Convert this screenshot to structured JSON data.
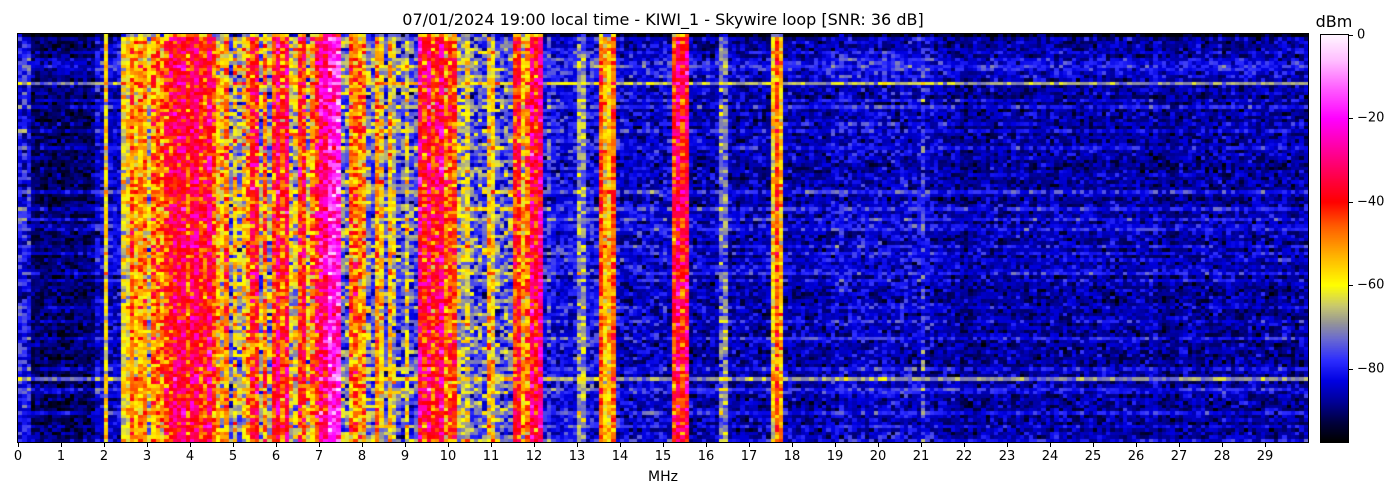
{
  "title": "07/01/2024 19:00 local time - KIWI_1 - Skywire loop [SNR: 36 dB]",
  "station": "KIWI_1",
  "antenna": "Skywire loop",
  "snr_label": "SNR: 36 dB",
  "timestamp_label": "07/01/2024 19:00 local time",
  "colors": {
    "background": "#ffffff",
    "frame": "#000000",
    "text": "#000000"
  },
  "chart_data": {
    "type": "heatmap",
    "title": "07/01/2024 19:00 local time - KIWI_1 - Skywire loop [SNR: 36 dB]",
    "xlabel": "MHz",
    "value_label": "dBm",
    "x_range": [
      0,
      30
    ],
    "value_range": [
      -97.5,
      0
    ],
    "grid": false,
    "x_ticks": [
      {
        "v": 0,
        "label": "0"
      },
      {
        "v": 1,
        "label": "1"
      },
      {
        "v": 2,
        "label": "2"
      },
      {
        "v": 3,
        "label": "3"
      },
      {
        "v": 4,
        "label": "4"
      },
      {
        "v": 5,
        "label": "5"
      },
      {
        "v": 6,
        "label": "6"
      },
      {
        "v": 7,
        "label": "7"
      },
      {
        "v": 8,
        "label": "8"
      },
      {
        "v": 9,
        "label": "9"
      },
      {
        "v": 10,
        "label": "10"
      },
      {
        "v": 11,
        "label": "11"
      },
      {
        "v": 12,
        "label": "12"
      },
      {
        "v": 13,
        "label": "13"
      },
      {
        "v": 14,
        "label": "14"
      },
      {
        "v": 15,
        "label": "15"
      },
      {
        "v": 16,
        "label": "16"
      },
      {
        "v": 17,
        "label": "17"
      },
      {
        "v": 18,
        "label": "18"
      },
      {
        "v": 19,
        "label": "19"
      },
      {
        "v": 20,
        "label": "20"
      },
      {
        "v": 21,
        "label": "21"
      },
      {
        "v": 22,
        "label": "22"
      },
      {
        "v": 23,
        "label": "23"
      },
      {
        "v": 24,
        "label": "24"
      },
      {
        "v": 25,
        "label": "25"
      },
      {
        "v": 26,
        "label": "26"
      },
      {
        "v": 27,
        "label": "27"
      },
      {
        "v": 28,
        "label": "28"
      },
      {
        "v": 29,
        "label": "29"
      }
    ],
    "colorbar_ticks": [
      {
        "v": 0,
        "label": "0"
      },
      {
        "v": -20,
        "label": "−20"
      },
      {
        "v": -40,
        "label": "−40"
      },
      {
        "v": -60,
        "label": "−60"
      },
      {
        "v": -80,
        "label": "−80"
      }
    ],
    "grid_bins": 300,
    "grid_rows": 120,
    "seed": 7,
    "top_row_darken": -18,
    "colormap": [
      [
        0,
        [
          255,
          245,
          255
        ]
      ],
      [
        -6,
        [
          255,
          190,
          255
        ]
      ],
      [
        -13,
        [
          255,
          90,
          255
        ]
      ],
      [
        -20,
        [
          255,
          0,
          255
        ]
      ],
      [
        -28,
        [
          255,
          0,
          150
        ]
      ],
      [
        -35,
        [
          255,
          0,
          60
        ]
      ],
      [
        -40,
        [
          255,
          0,
          0
        ]
      ],
      [
        -46,
        [
          255,
          95,
          0
        ]
      ],
      [
        -53,
        [
          255,
          180,
          0
        ]
      ],
      [
        -60,
        [
          255,
          255,
          0
        ]
      ],
      [
        -65,
        [
          200,
          200,
          110
        ]
      ],
      [
        -69,
        [
          150,
          150,
          150
        ]
      ],
      [
        -73,
        [
          105,
          105,
          210
        ]
      ],
      [
        -78,
        [
          45,
          45,
          255
        ]
      ],
      [
        -83,
        [
          0,
          0,
          225
        ]
      ],
      [
        -88,
        [
          0,
          0,
          150
        ]
      ],
      [
        -93,
        [
          0,
          0,
          60
        ]
      ],
      [
        -97.5,
        [
          0,
          0,
          0
        ]
      ]
    ],
    "noise_bands": [
      [
        0.0,
        0.35,
        -83,
        5
      ],
      [
        0.35,
        1.8,
        -92,
        3.5
      ],
      [
        1.8,
        2.5,
        -86,
        4
      ],
      [
        2.5,
        3.0,
        -75,
        7
      ],
      [
        3.0,
        3.5,
        -65,
        8
      ],
      [
        3.5,
        4.45,
        -61,
        7
      ],
      [
        4.45,
        5.0,
        -74,
        8
      ],
      [
        5.0,
        5.9,
        -69,
        9
      ],
      [
        5.9,
        6.35,
        -56,
        8
      ],
      [
        6.35,
        7.0,
        -64,
        9
      ],
      [
        7.0,
        7.55,
        -48,
        8
      ],
      [
        7.55,
        8.2,
        -73,
        8
      ],
      [
        8.2,
        9.3,
        -77,
        7
      ],
      [
        9.3,
        10.15,
        -59,
        8
      ],
      [
        10.15,
        10.5,
        -69,
        7
      ],
      [
        10.5,
        11.6,
        -76,
        7
      ],
      [
        11.6,
        11.95,
        -74,
        8
      ],
      [
        11.95,
        12.12,
        -52,
        8
      ],
      [
        12.12,
        13.55,
        -84,
        4.5
      ],
      [
        13.55,
        13.9,
        -80,
        6
      ],
      [
        13.9,
        15.2,
        -86,
        4.5
      ],
      [
        15.2,
        15.6,
        -72,
        8
      ],
      [
        15.6,
        17.55,
        -88,
        4
      ],
      [
        17.55,
        17.8,
        -82,
        5
      ],
      [
        17.8,
        18.9,
        -88,
        4
      ],
      [
        18.9,
        21.3,
        -86,
        4.5
      ],
      [
        21.3,
        21.9,
        -88,
        4
      ],
      [
        21.9,
        22.3,
        -90,
        3.5
      ],
      [
        22.3,
        26.5,
        -88.5,
        4
      ],
      [
        26.5,
        27.0,
        -90,
        3.5
      ],
      [
        27.0,
        30.01,
        -88.5,
        4
      ]
    ],
    "signal_lines": [
      [
        2.05,
        0.08,
        -60
      ],
      [
        2.45,
        0.08,
        -63
      ],
      [
        2.55,
        0.07,
        -60
      ],
      [
        2.72,
        0.08,
        -57
      ],
      [
        2.9,
        0.07,
        -61
      ],
      [
        2.97,
        0.06,
        -55
      ],
      [
        3.2,
        0.1,
        -48
      ],
      [
        3.38,
        0.08,
        -52
      ],
      [
        3.6,
        0.08,
        -50
      ],
      [
        3.7,
        0.09,
        -46
      ],
      [
        3.82,
        0.07,
        -50
      ],
      [
        3.95,
        0.09,
        -44
      ],
      [
        4.1,
        0.07,
        -52
      ],
      [
        4.3,
        0.14,
        -42
      ],
      [
        4.62,
        0.07,
        -55
      ],
      [
        4.77,
        0.08,
        -59
      ],
      [
        5.05,
        0.08,
        -60
      ],
      [
        5.28,
        0.06,
        -62
      ],
      [
        5.5,
        0.09,
        -50
      ],
      [
        5.75,
        0.08,
        -49
      ],
      [
        5.99,
        0.1,
        -44
      ],
      [
        6.17,
        0.09,
        -46
      ],
      [
        6.6,
        0.08,
        -52
      ],
      [
        6.87,
        0.08,
        -50
      ],
      [
        7.1,
        0.08,
        -40
      ],
      [
        7.21,
        0.12,
        -33
      ],
      [
        7.33,
        0.12,
        -29
      ],
      [
        7.45,
        0.08,
        -36
      ],
      [
        7.8,
        0.08,
        -58
      ],
      [
        8.0,
        0.07,
        -61
      ],
      [
        8.42,
        0.07,
        -60
      ],
      [
        8.72,
        0.06,
        -66
      ],
      [
        9.05,
        0.07,
        -63
      ],
      [
        9.45,
        0.1,
        -42
      ],
      [
        9.62,
        0.08,
        -45
      ],
      [
        9.78,
        0.1,
        -40
      ],
      [
        9.95,
        0.08,
        -48
      ],
      [
        10.1,
        0.07,
        -55
      ],
      [
        10.44,
        0.06,
        -62
      ],
      [
        11.0,
        0.06,
        -67
      ],
      [
        11.6,
        0.07,
        -52
      ],
      [
        11.77,
        0.07,
        -58
      ],
      [
        12.02,
        0.12,
        -40
      ],
      [
        12.35,
        0.06,
        -80
      ],
      [
        13.1,
        0.06,
        -80
      ],
      [
        13.63,
        0.07,
        -56
      ],
      [
        13.78,
        0.07,
        -57
      ],
      [
        15.3,
        0.09,
        -52
      ],
      [
        15.45,
        0.09,
        -42
      ],
      [
        15.55,
        0.07,
        -50
      ],
      [
        16.4,
        0.06,
        -84
      ],
      [
        17.55,
        0.06,
        -60
      ],
      [
        17.72,
        0.07,
        -55
      ],
      [
        21.07,
        0.05,
        -80
      ]
    ],
    "row_burst_tiers": [
      [
        0.05,
        9,
        10
      ],
      [
        0.08,
        13,
        8
      ],
      [
        0.3,
        3.5,
        5
      ],
      [
        1.01,
        0,
        2
      ]
    ]
  }
}
